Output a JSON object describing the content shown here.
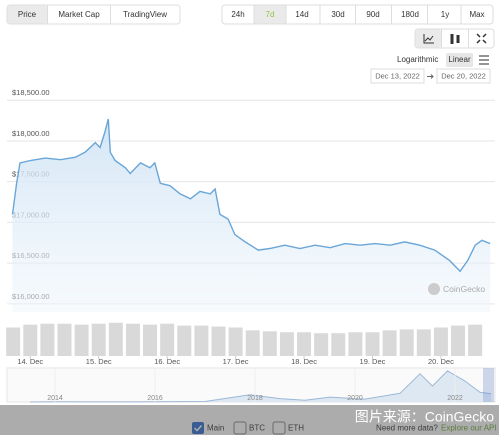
{
  "tabs": [
    "Price",
    "Market Cap",
    "TradingView"
  ],
  "ranges": [
    "24h",
    "7d",
    "14d",
    "30d",
    "90d",
    "180d",
    "1y",
    "Max"
  ],
  "scale_options": [
    "Logarithmic",
    "Linear"
  ],
  "date_from": "Dec 13, 2022",
  "date_to": "Dec 20, 2022",
  "brand": "CoinGecko",
  "legend": [
    "Main",
    "BTC",
    "ETH"
  ],
  "footer_text": "Need more data?",
  "footer_link": "Explore our API",
  "watermark": "图片来源：CoinGecko",
  "chart_data": [
    {
      "type": "area",
      "color": "#6aa6d8",
      "x": [
        13.74,
        13.8,
        13.85,
        14.0,
        14.22,
        14.44,
        14.66,
        14.8,
        14.95,
        15.02,
        15.09,
        15.14,
        15.17,
        15.24,
        15.39,
        15.46,
        15.61,
        15.75,
        15.82,
        15.9,
        16.04,
        16.19,
        16.34,
        16.48,
        16.63,
        16.7,
        16.77,
        16.89,
        16.99,
        17.14,
        17.33,
        17.5,
        17.72,
        17.94,
        18.16,
        18.38,
        18.6,
        18.82,
        19.04,
        19.26,
        19.47,
        19.69,
        19.91,
        20.13,
        20.28,
        20.39,
        20.5,
        20.6,
        20.72
      ],
      "values": [
        17100,
        17480,
        17730,
        17760,
        17790,
        17770,
        17800,
        17860,
        17980,
        17920,
        18110,
        18270,
        17860,
        17760,
        17670,
        17600,
        17730,
        17670,
        17730,
        17480,
        17450,
        17350,
        17290,
        17380,
        17350,
        17410,
        17100,
        17040,
        16850,
        16760,
        16660,
        16680,
        16720,
        16680,
        16720,
        16690,
        16740,
        16720,
        16740,
        16720,
        16760,
        16720,
        16660,
        16530,
        16400,
        16530,
        16720,
        16780,
        16740
      ],
      "xlim": [
        13.66,
        20.79
      ],
      "ylim": [
        15900,
        18650
      ],
      "yticks": [
        {
          "value": 16000,
          "label": "$16,000.00"
        },
        {
          "value": 16500,
          "label": "$16,500.00"
        },
        {
          "value": 17000,
          "label": "$17,000.00"
        },
        {
          "value": 17500,
          "label": "$17,500.00"
        },
        {
          "value": 18000,
          "label": "$18,000.00"
        },
        {
          "value": 18500,
          "label": "$18,500.00"
        }
      ],
      "xticks": [
        {
          "value": 14,
          "label": "14. Dec"
        },
        {
          "value": 15,
          "label": "15. Dec"
        },
        {
          "value": 16,
          "label": "16. Dec"
        },
        {
          "value": 17,
          "label": "17. Dec"
        },
        {
          "value": 18,
          "label": "18. Dec"
        },
        {
          "value": 19,
          "label": "19. Dec"
        },
        {
          "value": 20,
          "label": "20. Dec"
        }
      ],
      "grid": true
    },
    {
      "type": "bar",
      "color": "#d9d9d9",
      "x": [
        13.75,
        14.0,
        14.25,
        14.5,
        14.75,
        15.0,
        15.25,
        15.5,
        15.75,
        16.0,
        16.25,
        16.5,
        16.75,
        17.0,
        17.25,
        17.5,
        17.75,
        18.0,
        18.25,
        18.5,
        18.75,
        19.0,
        19.25,
        19.5,
        19.75,
        20.0,
        20.25,
        20.5
      ],
      "values": [
        30,
        33,
        34,
        34,
        33,
        34,
        35,
        34,
        33,
        34,
        32,
        32,
        31,
        30,
        27,
        26,
        25,
        25,
        24,
        24,
        25,
        25,
        27,
        28,
        28,
        30,
        32,
        33
      ],
      "xlim": [
        13.66,
        20.79
      ],
      "ylim": [
        0,
        40
      ]
    },
    {
      "type": "area",
      "color": "#9cb8d6",
      "x": [
        2013.5,
        2014,
        2015,
        2016,
        2017,
        2017.9,
        2018.5,
        2019,
        2019.5,
        2020,
        2020.2,
        2020.9,
        2021.3,
        2021.55,
        2021.85,
        2022.2,
        2022.5,
        2022.72
      ],
      "values": [
        100,
        500,
        300,
        400,
        1000,
        15000,
        7000,
        3500,
        10000,
        7000,
        6000,
        18000,
        58000,
        33000,
        64000,
        43000,
        20000,
        17000
      ],
      "xlim": [
        2013.04,
        2022.8
      ],
      "ylim": [
        0,
        70000
      ],
      "xticks": [
        2014,
        2016,
        2018,
        2020,
        2022
      ]
    }
  ]
}
